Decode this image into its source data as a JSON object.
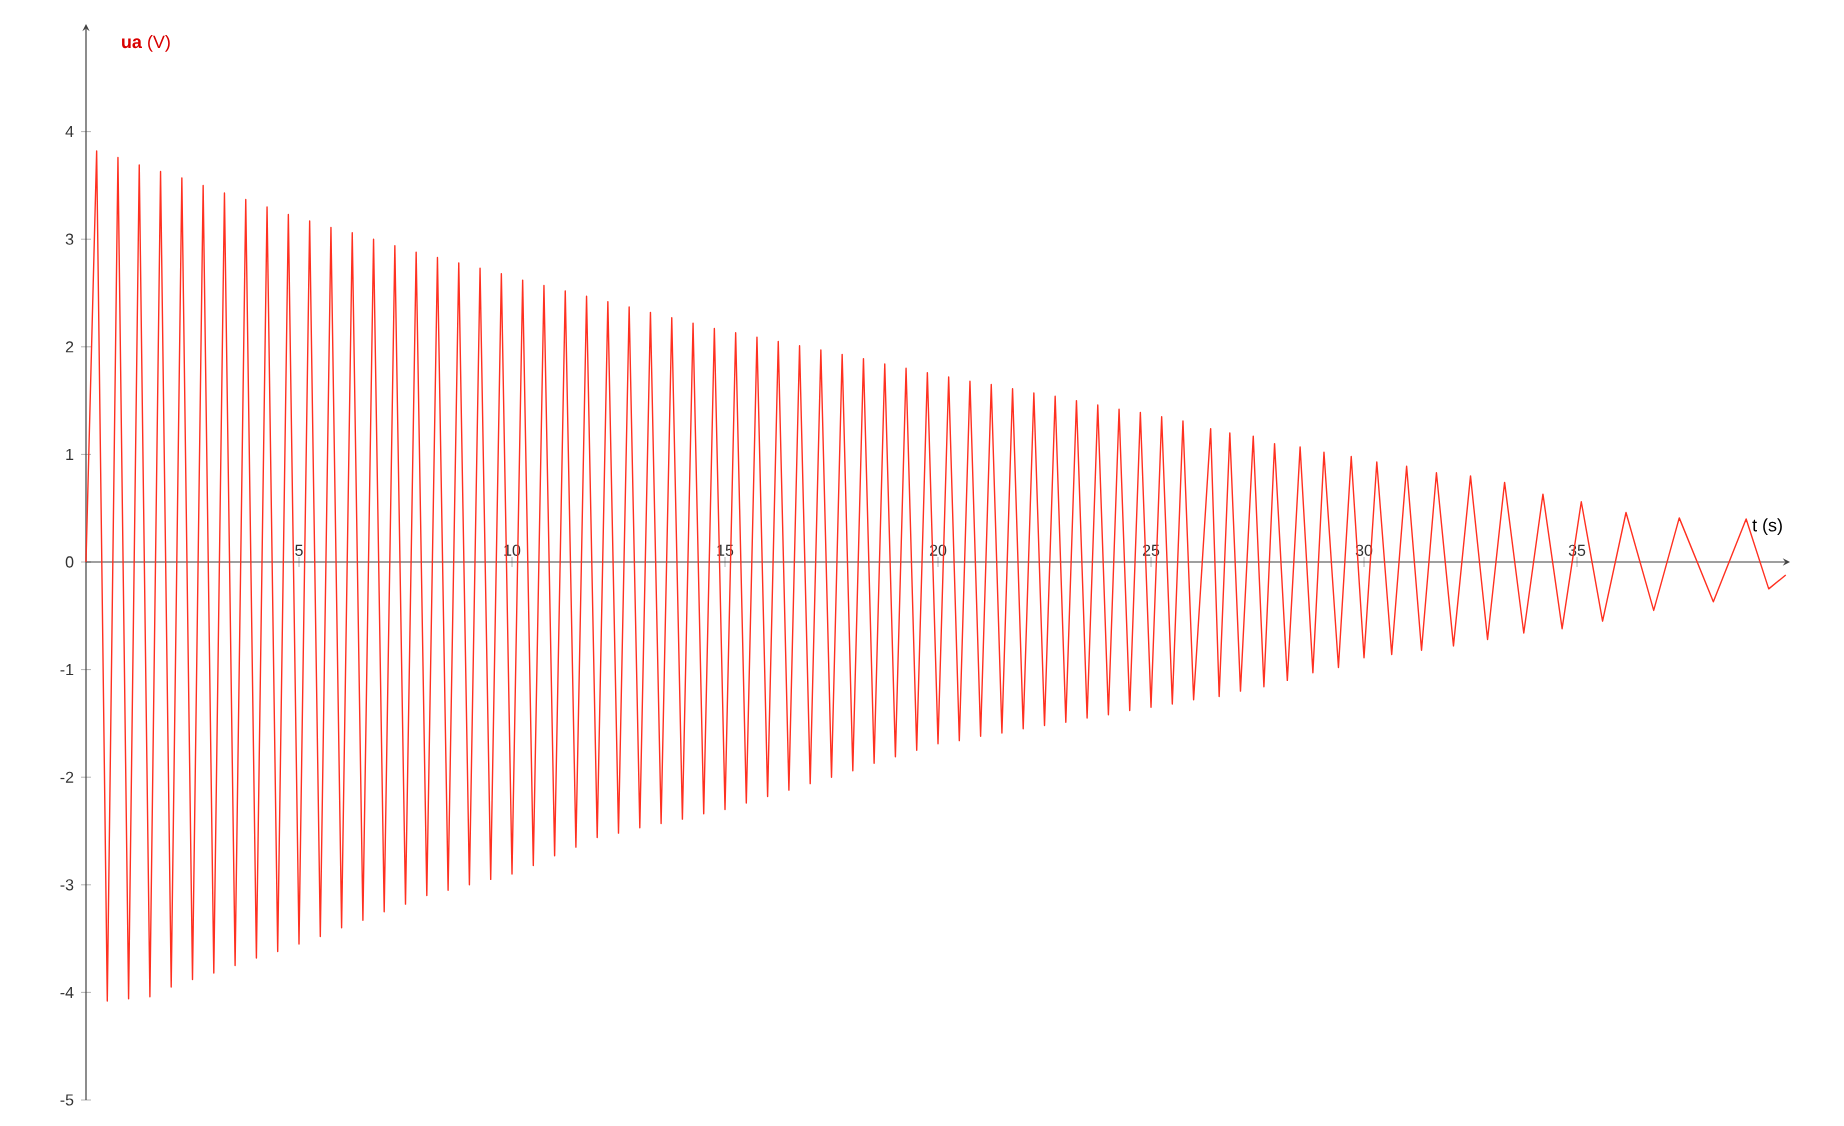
{
  "chart_data": {
    "type": "line",
    "xlabel": "t (s)",
    "ylabel": "**ua** (V)",
    "xlim": [
      0,
      40
    ],
    "ylim": [
      -5,
      5
    ],
    "xticks": [
      5,
      10,
      15,
      20,
      25,
      30,
      35
    ],
    "yticks": [
      -5,
      -4,
      -3,
      -2,
      -1,
      0,
      1,
      2,
      3,
      4
    ],
    "series": [
      {
        "color": "#ff3020",
        "x": [
          0,
          0.25,
          0.5,
          0.75,
          1.0,
          1.25,
          1.5,
          1.75,
          2.0,
          2.25,
          2.5,
          2.75,
          3.0,
          3.25,
          3.5,
          3.75,
          4.0,
          4.25,
          4.5,
          4.75,
          5.0,
          5.25,
          5.5,
          5.75,
          6.0,
          6.25,
          6.5,
          6.75,
          7.0,
          7.25,
          7.5,
          7.75,
          8.0,
          8.25,
          8.5,
          8.75,
          9.0,
          9.25,
          9.5,
          9.75,
          10.0,
          10.25,
          10.5,
          10.75,
          11.0,
          11.25,
          11.5,
          11.75,
          12.0,
          12.25,
          12.5,
          12.75,
          13.0,
          13.25,
          13.5,
          13.75,
          14.0,
          14.25,
          14.5,
          14.75,
          15.0,
          15.25,
          15.5,
          15.75,
          16.0,
          16.25,
          16.5,
          16.75,
          17.0,
          17.25,
          17.5,
          17.75,
          18.0,
          18.25,
          18.5,
          18.75,
          19.0,
          19.25,
          19.5,
          19.75,
          20.0,
          20.25,
          20.5,
          20.75,
          21.0,
          21.25,
          21.5,
          21.75,
          22.0,
          22.25,
          22.5,
          22.75,
          23.0,
          23.25,
          23.5,
          23.75,
          24.0,
          24.25,
          24.5,
          24.75,
          25.0,
          25.25,
          25.5,
          25.75,
          26.0,
          26.4,
          26.6,
          26.85,
          27.1,
          27.4,
          27.65,
          27.9,
          28.2,
          28.5,
          28.8,
          29.06,
          29.4,
          29.7,
          30.0,
          30.3,
          30.65,
          31.0,
          31.35,
          31.7,
          32.1,
          32.5,
          32.9,
          33.3,
          33.75,
          34.2,
          34.65,
          35.1,
          35.6,
          36.15,
          36.8,
          37.4,
          38.2,
          38.97,
          39.5,
          39.9
        ],
        "values": [
          0,
          3.82,
          -4.08,
          3.76,
          -4.06,
          3.69,
          -4.04,
          3.63,
          -3.95,
          3.57,
          -3.88,
          3.5,
          -3.82,
          3.43,
          -3.75,
          3.37,
          -3.68,
          3.3,
          -3.62,
          3.23,
          -3.55,
          3.17,
          -3.48,
          3.11,
          -3.4,
          3.06,
          -3.33,
          3.0,
          -3.25,
          2.94,
          -3.18,
          2.88,
          -3.1,
          2.83,
          -3.05,
          2.78,
          -3.0,
          2.73,
          -2.95,
          2.68,
          -2.9,
          2.62,
          -2.82,
          2.57,
          -2.73,
          2.52,
          -2.65,
          2.47,
          -2.56,
          2.42,
          -2.52,
          2.37,
          -2.47,
          2.32,
          -2.43,
          2.27,
          -2.39,
          2.22,
          -2.34,
          2.17,
          -2.3,
          2.13,
          -2.24,
          2.09,
          -2.18,
          2.05,
          -2.12,
          2.01,
          -2.06,
          1.97,
          -2.0,
          1.93,
          -1.94,
          1.89,
          -1.87,
          1.84,
          -1.81,
          1.8,
          -1.75,
          1.76,
          -1.69,
          1.72,
          -1.66,
          1.68,
          -1.62,
          1.65,
          -1.59,
          1.61,
          -1.55,
          1.57,
          -1.52,
          1.54,
          -1.49,
          1.5,
          -1.45,
          1.46,
          -1.42,
          1.42,
          -1.38,
          1.39,
          -1.35,
          1.35,
          -1.32,
          1.31,
          -1.28,
          1.24,
          -1.25,
          1.2,
          -1.2,
          1.17,
          -1.16,
          1.1,
          -1.1,
          1.07,
          -1.03,
          1.02,
          -0.98,
          0.98,
          -0.89,
          0.93,
          -0.86,
          0.89,
          -0.82,
          0.83,
          -0.78,
          0.8,
          -0.72,
          0.74,
          -0.66,
          0.63,
          -0.62,
          0.56,
          -0.55,
          0.46,
          -0.45,
          0.41,
          -0.37,
          0.4,
          -0.25,
          -0.12
        ]
      }
    ]
  }
}
